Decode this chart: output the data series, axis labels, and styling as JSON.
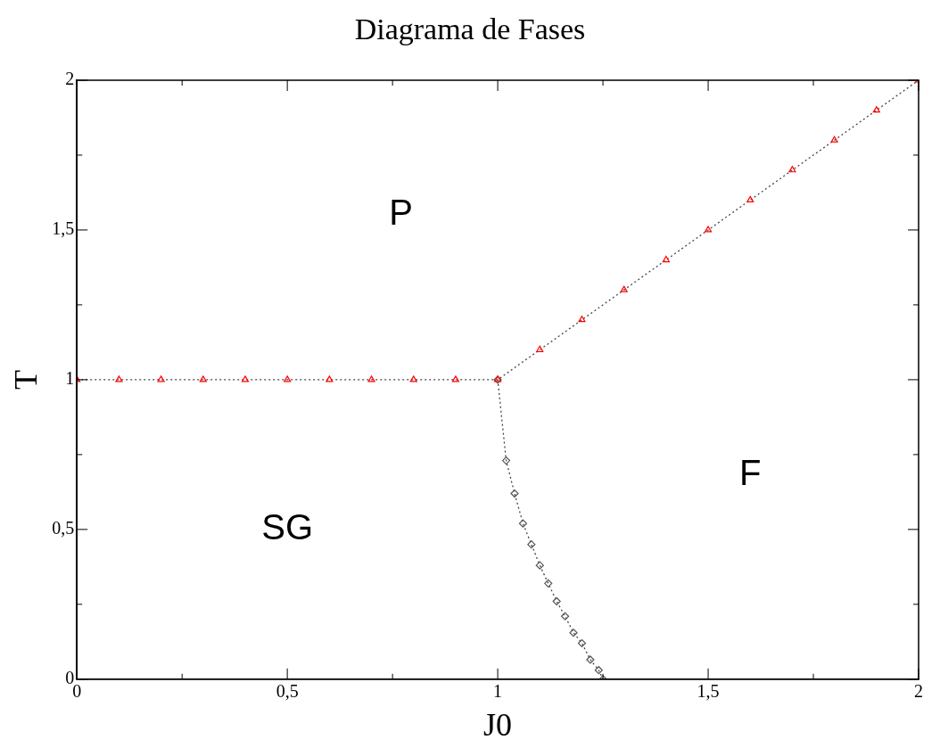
{
  "chart_data": {
    "type": "line",
    "title": "Diagrama de Fases",
    "xlabel": "J0",
    "ylabel": "T",
    "xlim": [
      0,
      2
    ],
    "ylim": [
      0,
      2
    ],
    "xticks": [
      0,
      {
        "value": 0.5,
        "label": "0,5"
      },
      1,
      {
        "value": 1.5,
        "label": "1,5"
      },
      2
    ],
    "yticks": [
      0,
      {
        "value": 0.5,
        "label": "0,5"
      },
      1,
      {
        "value": 1.5,
        "label": "1,5"
      },
      2
    ],
    "grid": false,
    "legend": false,
    "line_style": "dotted",
    "series": [
      {
        "color": "#ff0000",
        "marker": "triangle",
        "x": [
          0,
          0.1,
          0.2,
          0.3,
          0.4,
          0.5,
          0.6,
          0.7,
          0.8,
          0.9,
          1.0,
          1.1,
          1.2,
          1.3,
          1.4,
          1.5,
          1.6,
          1.7,
          1.8,
          1.9,
          2.0
        ],
        "values": [
          1,
          1,
          1,
          1,
          1,
          1,
          1,
          1,
          1,
          1,
          1,
          1.1,
          1.2,
          1.3,
          1.4,
          1.5,
          1.6,
          1.7,
          1.8,
          1.9,
          2.0
        ]
      },
      {
        "color": "#555555",
        "marker": "diamond",
        "x": [
          1.0,
          1.02,
          1.04,
          1.06,
          1.08,
          1.1,
          1.12,
          1.14,
          1.16,
          1.18,
          1.2,
          1.22,
          1.24,
          1.25
        ],
        "values": [
          1.0,
          0.73,
          0.62,
          0.52,
          0.45,
          0.38,
          0.32,
          0.26,
          0.21,
          0.155,
          0.12,
          0.065,
          0.03,
          0.0
        ]
      }
    ],
    "annotations": [
      "P",
      "SG",
      "F"
    ]
  }
}
